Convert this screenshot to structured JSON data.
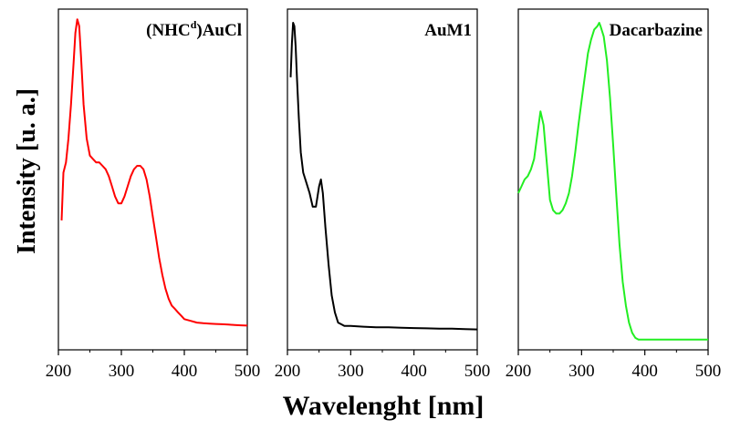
{
  "chart_data": [
    {
      "type": "line",
      "title": "(NHC",
      "title_superscript": "d",
      "title_suffix": ")AuCl",
      "color": "#ff0000",
      "xlim": [
        200,
        500
      ],
      "xticks": [
        "200",
        "300",
        "400",
        "500"
      ],
      "x": [
        205,
        208,
        212,
        216,
        220,
        224,
        227,
        230,
        233,
        236,
        240,
        245,
        250,
        255,
        260,
        265,
        270,
        275,
        280,
        285,
        290,
        295,
        300,
        305,
        310,
        315,
        320,
        325,
        330,
        335,
        340,
        345,
        350,
        355,
        360,
        365,
        370,
        375,
        380,
        385,
        390,
        395,
        400,
        410,
        420,
        430,
        440,
        450,
        460,
        470,
        480,
        490,
        500
      ],
      "y": [
        0.38,
        0.52,
        0.55,
        0.62,
        0.72,
        0.84,
        0.93,
        0.97,
        0.95,
        0.86,
        0.72,
        0.62,
        0.57,
        0.56,
        0.55,
        0.55,
        0.54,
        0.53,
        0.51,
        0.48,
        0.45,
        0.43,
        0.43,
        0.45,
        0.48,
        0.51,
        0.53,
        0.54,
        0.54,
        0.53,
        0.5,
        0.45,
        0.39,
        0.33,
        0.27,
        0.22,
        0.18,
        0.15,
        0.13,
        0.12,
        0.11,
        0.1,
        0.09,
        0.085,
        0.08,
        0.078,
        0.077,
        0.076,
        0.075,
        0.074,
        0.073,
        0.072,
        0.071
      ]
    },
    {
      "type": "line",
      "title": "AuM1",
      "color": "#000000",
      "xlim": [
        200,
        500
      ],
      "xticks": [
        "200",
        "300",
        "400",
        "500"
      ],
      "x": [
        205,
        207,
        209,
        211,
        213,
        215,
        218,
        221,
        225,
        230,
        235,
        240,
        245,
        250,
        253,
        256,
        260,
        265,
        270,
        275,
        280,
        285,
        290,
        300,
        320,
        340,
        360,
        380,
        400,
        420,
        440,
        460,
        480,
        500
      ],
      "y": [
        0.8,
        0.9,
        0.96,
        0.95,
        0.89,
        0.8,
        0.68,
        0.58,
        0.52,
        0.49,
        0.46,
        0.42,
        0.42,
        0.48,
        0.5,
        0.46,
        0.36,
        0.25,
        0.16,
        0.11,
        0.08,
        0.075,
        0.07,
        0.07,
        0.068,
        0.066,
        0.066,
        0.065,
        0.064,
        0.063,
        0.062,
        0.062,
        0.061,
        0.06
      ]
    },
    {
      "type": "line",
      "title": "Dacarbazine",
      "color": "#22ee22",
      "xlim": [
        200,
        500
      ],
      "xticks": [
        "200",
        "300",
        "400",
        "500"
      ],
      "x": [
        200,
        205,
        210,
        215,
        220,
        225,
        230,
        235,
        240,
        245,
        250,
        255,
        260,
        265,
        270,
        275,
        280,
        285,
        290,
        295,
        300,
        305,
        310,
        315,
        320,
        325,
        328,
        330,
        335,
        340,
        345,
        350,
        355,
        360,
        365,
        370,
        375,
        380,
        385,
        390,
        395,
        400,
        410,
        420,
        440,
        460,
        480,
        500
      ],
      "y": [
        0.46,
        0.48,
        0.5,
        0.51,
        0.53,
        0.56,
        0.63,
        0.7,
        0.66,
        0.55,
        0.44,
        0.41,
        0.4,
        0.4,
        0.41,
        0.43,
        0.46,
        0.51,
        0.58,
        0.66,
        0.73,
        0.8,
        0.87,
        0.91,
        0.94,
        0.95,
        0.96,
        0.95,
        0.92,
        0.85,
        0.74,
        0.6,
        0.45,
        0.31,
        0.2,
        0.13,
        0.08,
        0.05,
        0.035,
        0.03,
        0.03,
        0.03,
        0.03,
        0.03,
        0.03,
        0.03,
        0.03,
        0.03
      ]
    }
  ],
  "axes": {
    "ylabel": "Intensity [u. a.]",
    "xlabel": "Wavelenght [nm]"
  }
}
